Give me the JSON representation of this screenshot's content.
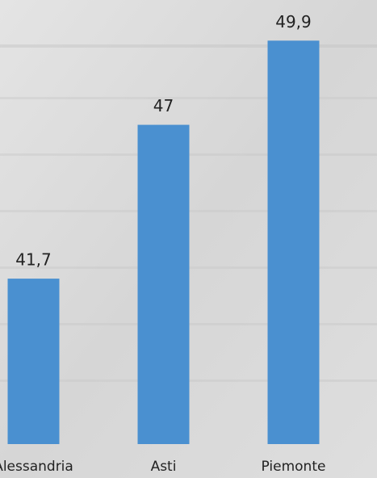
{
  "chart_data": {
    "type": "bar",
    "categories": [
      "Alessandria",
      "Asti",
      "Piemonte"
    ],
    "values": [
      41.7,
      47,
      49.9
    ],
    "value_labels": [
      "41,7",
      "47",
      "49,9"
    ],
    "color": "#4a90d0",
    "ylim": [
      36,
      51.3
    ]
  }
}
